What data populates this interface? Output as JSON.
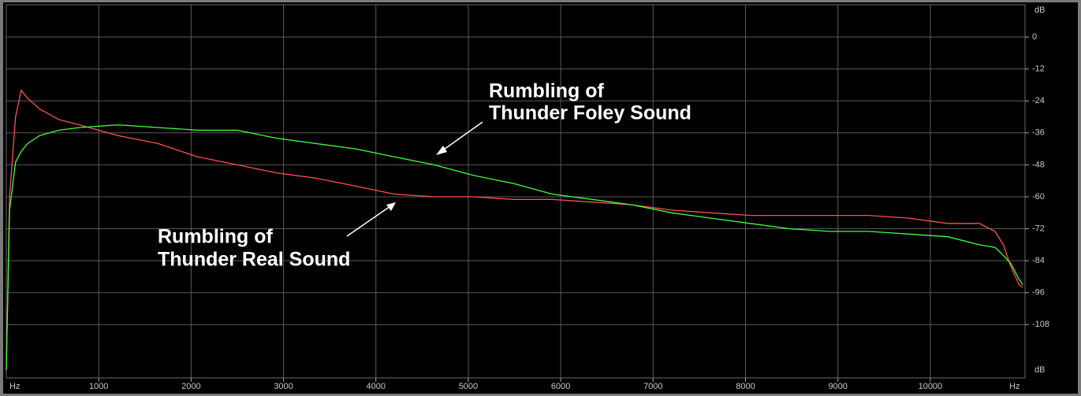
{
  "chart_data": {
    "type": "line",
    "xlabel": "Hz",
    "ylabel": "dB",
    "x": [
      0,
      35,
      100,
      160,
      230,
      360,
      570,
      790,
      1210,
      1640,
      2070,
      2500,
      2920,
      3350,
      3780,
      4200,
      4630,
      5060,
      5490,
      5910,
      6340,
      6770,
      7200,
      7620,
      8050,
      8480,
      8910,
      9330,
      9760,
      10190,
      10530,
      10700,
      10790,
      10870,
      10960,
      11000
    ],
    "series": [
      {
        "name": "Rumbling of Thunder Real Sound",
        "color": "#ff5050",
        "values": [
          -125,
          -60,
          -30,
          -20,
          -23,
          -27,
          -31,
          -33,
          -37,
          -40,
          -45,
          -48,
          -51,
          -53,
          -56,
          -59,
          -60,
          -60,
          -61,
          -61,
          -62,
          -63,
          -65,
          -66,
          -67,
          -67,
          -67,
          -67,
          -68,
          -70,
          -70,
          -73,
          -78,
          -86,
          -93,
          -94
        ]
      },
      {
        "name": "Rumbling of Thunder Foley Sound",
        "color": "#40ff40",
        "values": [
          -125,
          -65,
          -47,
          -43,
          -40,
          -37,
          -35,
          -34,
          -33,
          -34,
          -35,
          -35,
          -38,
          -40,
          -42,
          -45,
          -48,
          -52,
          -55,
          -59,
          -61,
          -63,
          -66,
          -68,
          -70,
          -72,
          -73,
          -73,
          -74,
          -75,
          -78,
          -79,
          -82,
          -85,
          -91,
          -93
        ]
      }
    ],
    "annotations": [
      {
        "lines": [
          "Rumbling of",
          "Thunder Foley Sound"
        ]
      },
      {
        "lines": [
          "Rumbling of",
          "Thunder Real Sound"
        ]
      }
    ],
    "xlim": [
      0,
      11025
    ],
    "ylim": [
      -128,
      12
    ],
    "xticks": [
      1000,
      2000,
      3000,
      4000,
      5000,
      6000,
      7000,
      8000,
      9000,
      10000
    ],
    "yticks": [
      0,
      -12,
      -24,
      -36,
      -48,
      -60,
      -72,
      -84,
      -96,
      -108
    ],
    "grid": true
  }
}
